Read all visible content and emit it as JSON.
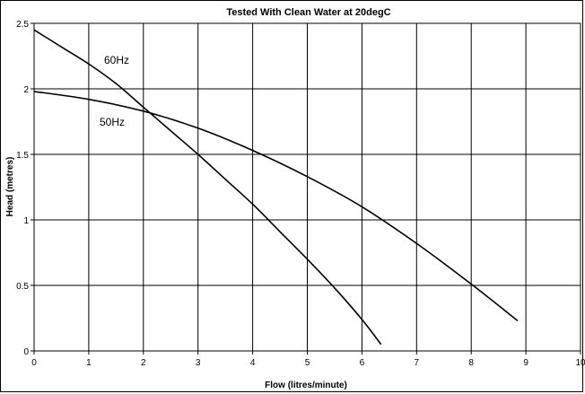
{
  "chart_data": {
    "type": "line",
    "title": "Tested With Clean Water at 20degC",
    "xlabel": "Flow (litres/minute)",
    "ylabel": "Head (metres)",
    "xlim": [
      0,
      10
    ],
    "ylim": [
      0,
      2.5
    ],
    "x_ticks": [
      "0",
      "1",
      "2",
      "3",
      "4",
      "5",
      "6",
      "7",
      "8",
      "9",
      "10"
    ],
    "y_ticks": [
      "0",
      "0.5",
      "1",
      "1.5",
      "2",
      "2.5"
    ],
    "grid": true,
    "legend": "none",
    "line_color": "#000000",
    "series": [
      {
        "label_text": "60Hz",
        "points": [
          [
            0,
            2.45
          ],
          [
            0.5,
            2.32
          ],
          [
            1,
            2.19
          ],
          [
            1.5,
            2.04
          ],
          [
            2,
            1.86
          ],
          [
            2.5,
            1.68
          ],
          [
            3,
            1.5
          ],
          [
            3.5,
            1.31
          ],
          [
            4,
            1.12
          ],
          [
            4.5,
            0.91
          ],
          [
            5,
            0.7
          ],
          [
            5.5,
            0.48
          ],
          [
            6,
            0.24
          ],
          [
            6.35,
            0.05
          ]
        ]
      },
      {
        "label_text": "50Hz",
        "points": [
          [
            0,
            1.98
          ],
          [
            1,
            1.92
          ],
          [
            2,
            1.83
          ],
          [
            3,
            1.7
          ],
          [
            4,
            1.53
          ],
          [
            5,
            1.33
          ],
          [
            6,
            1.1
          ],
          [
            7,
            0.82
          ],
          [
            8,
            0.51
          ],
          [
            8.85,
            0.23
          ]
        ]
      }
    ]
  }
}
